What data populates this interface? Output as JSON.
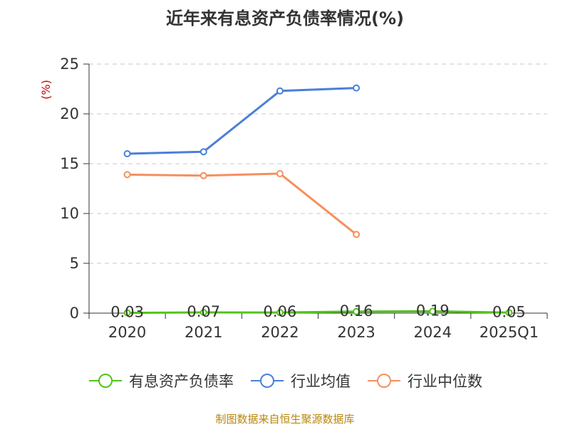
{
  "chart_data": {
    "type": "line",
    "title": "近年来有息资产负债率情况(%)",
    "ylabel": "(%)",
    "xlabel": "",
    "categories": [
      "2020",
      "2021",
      "2022",
      "2023",
      "2024",
      "2025Q1"
    ],
    "ylim": [
      0,
      25
    ],
    "yticks": [
      0,
      5,
      10,
      15,
      20,
      25
    ],
    "grid": true,
    "legend_position": "bottom",
    "series": [
      {
        "name": "有息资产负债率",
        "color": "#52c41a",
        "values": [
          0.03,
          0.07,
          0.06,
          0.16,
          0.19,
          0.05
        ],
        "labels": [
          "0.03",
          "0.07",
          "0.06",
          "0.16",
          "0.19",
          "0.05"
        ]
      },
      {
        "name": "行业均值",
        "color": "#4a7fd9",
        "values": [
          16.0,
          16.2,
          22.3,
          22.6,
          null,
          null
        ]
      },
      {
        "name": "行业中位数",
        "color": "#f58f5e",
        "values": [
          13.9,
          13.8,
          14.0,
          7.9,
          null,
          null
        ]
      }
    ]
  },
  "source": "制图数据来自恒生聚源数据库"
}
